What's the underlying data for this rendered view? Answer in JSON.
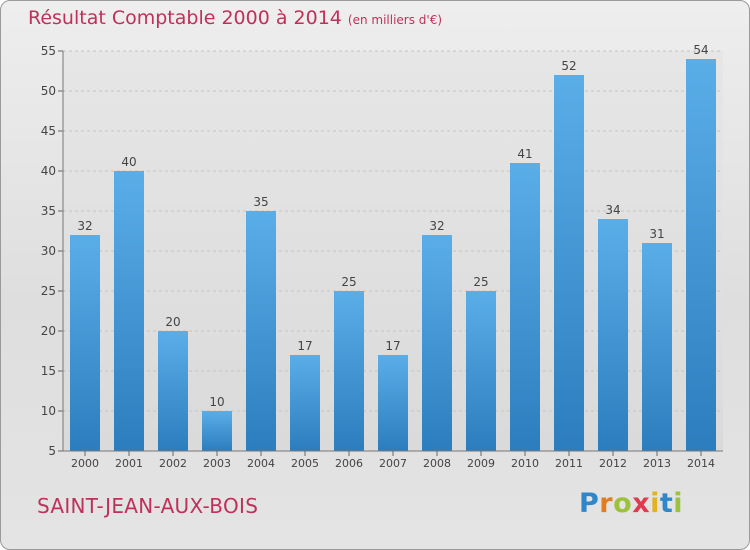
{
  "chart_data": {
    "type": "bar",
    "title": "Résultat Comptable 2000 à 2014",
    "subtitle": "(en milliers d'€)",
    "categories": [
      "2000",
      "2001",
      "2002",
      "2003",
      "2004",
      "2005",
      "2006",
      "2007",
      "2008",
      "2009",
      "2010",
      "2011",
      "2012",
      "2013",
      "2014"
    ],
    "values": [
      32,
      40,
      20,
      10,
      35,
      17,
      25,
      17,
      32,
      25,
      41,
      52,
      34,
      31,
      54
    ],
    "ylim": [
      5,
      55
    ],
    "yticks": [
      5,
      10,
      15,
      20,
      25,
      30,
      35,
      40,
      45,
      50,
      55
    ],
    "grid": true,
    "bar_color": "#3d8fd0"
  },
  "footer": {
    "town": "SAINT-JEAN-AUX-BOIS",
    "logo_letters": [
      "P",
      "r",
      "o",
      "x",
      "i",
      "t",
      "i"
    ],
    "logo_colors": [
      "#2f86c9",
      "#e27d1f",
      "#9bc23a",
      "#e03c4e",
      "#e2b31f",
      "#2f86c9",
      "#9bc23a"
    ]
  }
}
